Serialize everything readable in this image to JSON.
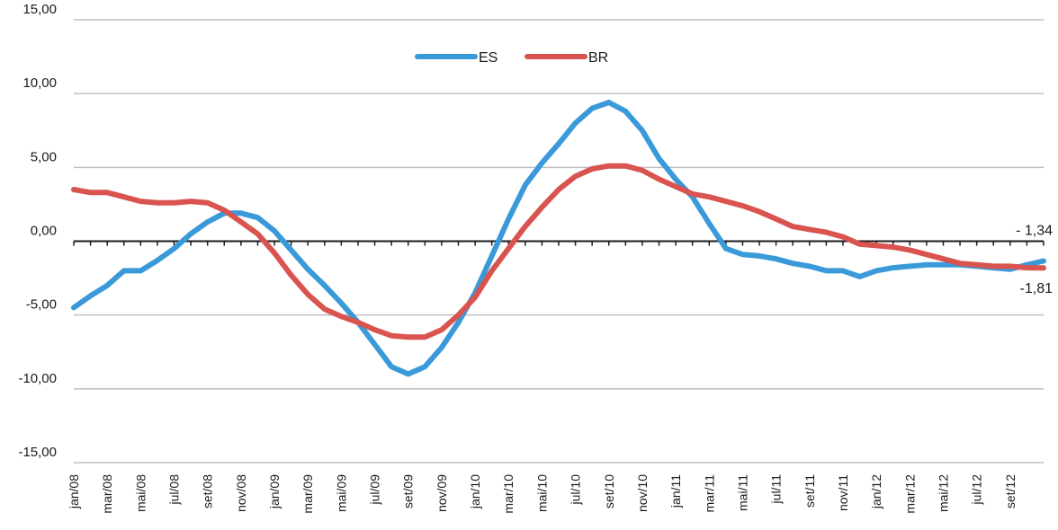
{
  "chart_data": {
    "type": "line",
    "title": "",
    "xlabel": "",
    "ylabel": "",
    "ylim": [
      -15,
      15
    ],
    "y_ticks": [
      "15,00",
      "10,00",
      "5,00",
      "0,00",
      "-5,00",
      "-10,00",
      "-15,00"
    ],
    "grid": true,
    "legend_position": "top-center",
    "x_tick_labels": [
      "jan/08",
      "mar/08",
      "mai/08",
      "jul/08",
      "set/08",
      "nov/08",
      "jan/09",
      "mar/09",
      "mai/09",
      "jul/09",
      "set/09",
      "nov/09",
      "jan/10",
      "mar/10",
      "mai/10",
      "jul/10",
      "set/10",
      "nov/10",
      "jan/11",
      "mar/11",
      "mai/11",
      "jul/11",
      "set/11",
      "nov/11",
      "jan/12",
      "mar/12",
      "mai/12",
      "jul/12",
      "set/12"
    ],
    "series": [
      {
        "name": "ES",
        "color": "#3a9ad9",
        "values": [
          -4.5,
          -3.7,
          -3.0,
          -2.0,
          -2.0,
          -1.3,
          -0.5,
          0.5,
          1.3,
          1.9,
          1.9,
          1.6,
          0.7,
          -0.6,
          -1.9,
          -3.0,
          -4.2,
          -5.5,
          -7.0,
          -8.5,
          -9.0,
          -8.5,
          -7.2,
          -5.5,
          -3.5,
          -1.0,
          1.5,
          3.8,
          5.3,
          6.6,
          8.0,
          9.0,
          9.4,
          8.8,
          7.5,
          5.6,
          4.2,
          3.0,
          1.2,
          -0.5,
          -0.9,
          -1.0,
          -1.2,
          -1.5,
          -1.7,
          -2.0,
          -2.0,
          -2.4,
          -2.0,
          -1.8,
          -1.7,
          -1.6,
          -1.6,
          -1.6,
          -1.7,
          -1.8,
          -1.9,
          -1.6,
          -1.34
        ]
      },
      {
        "name": "BR",
        "color": "#d9534f",
        "values": [
          3.5,
          3.3,
          3.3,
          3.0,
          2.7,
          2.6,
          2.6,
          2.7,
          2.6,
          2.1,
          1.3,
          0.5,
          -0.8,
          -2.3,
          -3.6,
          -4.6,
          -5.1,
          -5.5,
          -6.0,
          -6.4,
          -6.5,
          -6.5,
          -6.0,
          -5.0,
          -3.8,
          -2.0,
          -0.5,
          1.0,
          2.3,
          3.5,
          4.4,
          4.9,
          5.1,
          5.1,
          4.8,
          4.2,
          3.7,
          3.2,
          3.0,
          2.7,
          2.4,
          2.0,
          1.5,
          1.0,
          0.8,
          0.6,
          0.3,
          -0.2,
          -0.3,
          -0.4,
          -0.6,
          -0.9,
          -1.2,
          -1.5,
          -1.6,
          -1.7,
          -1.7,
          -1.8,
          -1.81
        ]
      }
    ],
    "annotations": [
      {
        "series": "ES",
        "text": "- 1,34"
      },
      {
        "series": "BR",
        "text": "-1,81"
      }
    ]
  }
}
